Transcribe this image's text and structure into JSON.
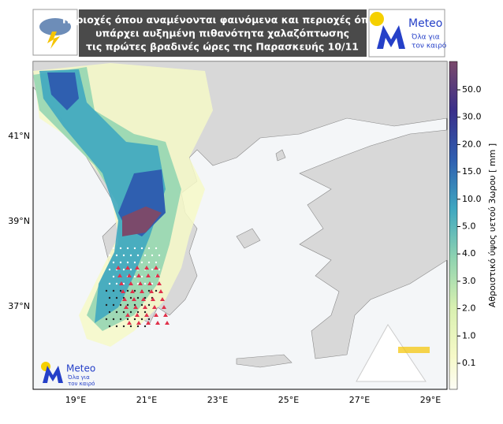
{
  "header": {
    "title_lines": [
      "Περιοχές όπου αναμένονται φαινόμενα και περιοχές όπου",
      "υπάρχει αυξημένη πιθανότητα χαλαζόπτωσης",
      "τις πρώτες βραδινές ώρες της Παρασκευής 10/11"
    ]
  },
  "logo": {
    "name": "Meteo",
    "slogan_lines": [
      "Όλα για",
      "τον καιρό"
    ]
  },
  "map": {
    "lat_labels": [
      "41°N",
      "39°N",
      "37°N"
    ],
    "lon_labels": [
      "19°E",
      "21°E",
      "23°E",
      "25°E",
      "27°E",
      "29°E"
    ]
  },
  "colorbar": {
    "label": "Αθροιστικό ύψος υετού 3ωρου [ mm ]",
    "ticks": [
      "50.0",
      "30.0",
      "20.0",
      "15.0",
      "10.0",
      "5.0",
      "4.0",
      "3.0",
      "2.0",
      "1.0",
      "0.1"
    ]
  }
}
